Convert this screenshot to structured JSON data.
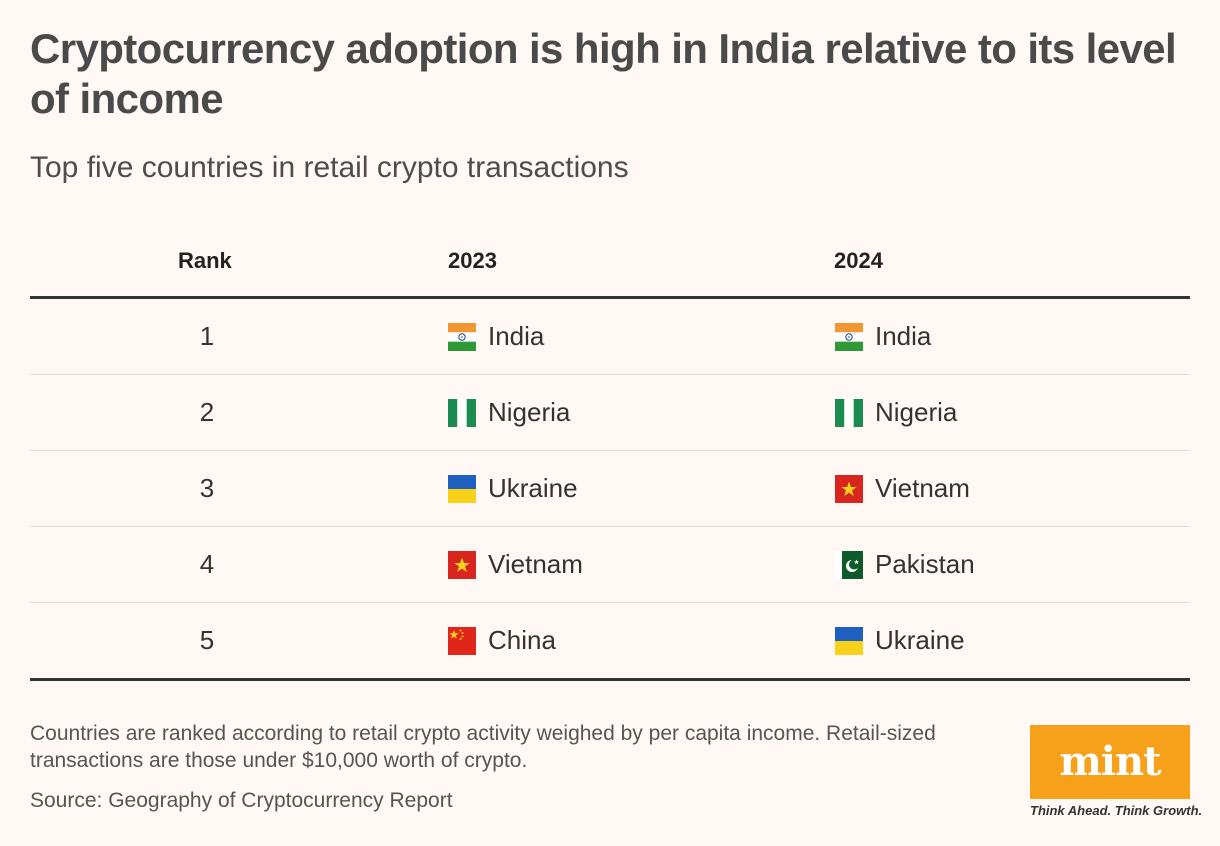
{
  "header": {
    "title": "Cryptocurrency adoption is high in India relative to its level of income",
    "subtitle": "Top five countries in retail crypto transactions"
  },
  "table": {
    "columns": [
      "Rank",
      "2023",
      "2024"
    ],
    "rows": [
      {
        "rank": "1",
        "y2023": {
          "name": "India",
          "flag": "india-flag"
        },
        "y2024": {
          "name": "India",
          "flag": "india-flag"
        }
      },
      {
        "rank": "2",
        "y2023": {
          "name": "Nigeria",
          "flag": "nigeria-flag"
        },
        "y2024": {
          "name": "Nigeria",
          "flag": "nigeria-flag"
        }
      },
      {
        "rank": "3",
        "y2023": {
          "name": "Ukraine",
          "flag": "ukraine-flag"
        },
        "y2024": {
          "name": "Vietnam",
          "flag": "vietnam-flag"
        }
      },
      {
        "rank": "4",
        "y2023": {
          "name": "Vietnam",
          "flag": "vietnam-flag"
        },
        "y2024": {
          "name": "Pakistan",
          "flag": "pakistan-flag"
        }
      },
      {
        "rank": "5",
        "y2023": {
          "name": "China",
          "flag": "china-flag"
        },
        "y2024": {
          "name": "Ukraine",
          "flag": "ukraine-flag"
        }
      }
    ]
  },
  "footer": {
    "note": "Countries are ranked according to retail crypto activity weighed by per capita income. Retail-sized transactions are those under $10,000 worth of crypto.",
    "source": "Source: Geography of Cryptocurrency Report",
    "logo_text": "mint",
    "tagline": "Think Ahead. Think Growth."
  },
  "colors": {
    "background": "#fff8f5",
    "brand_orange": "#f7a11a",
    "rule_dark": "#333333",
    "rule_light": "#dcdcdc"
  }
}
